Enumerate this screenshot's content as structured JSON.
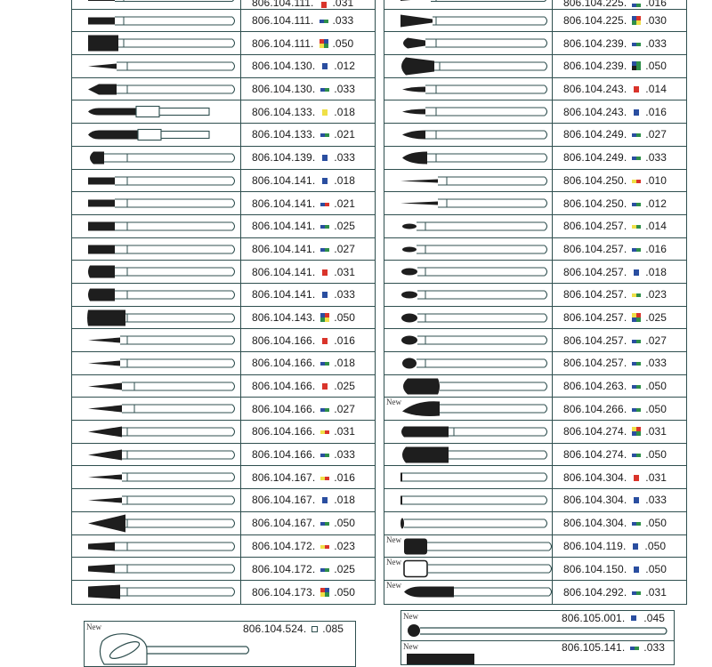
{
  "new_label": "New",
  "colors": {
    "red": "#d9342b",
    "blue": "#2a4ea0",
    "green": "#2f8f4a",
    "yellow": "#efe047",
    "black": "#1e1e1e",
    "outline": "#2f4f4f"
  },
  "left_column": [
    {
      "code": "806.104.111.",
      "swatch": [
        "red"
      ],
      "size": ".031",
      "shape": "bullet-l",
      "is_new": false
    },
    {
      "code": "806.104.111.",
      "swatch": [
        "blue",
        "green"
      ],
      "size": ".033",
      "shape": "bullet-l",
      "is_new": false
    },
    {
      "code": "806.104.111.",
      "swatch": [
        "quad"
      ],
      "size": ".050",
      "shape": "cyl-xl",
      "is_new": false
    },
    {
      "code": "806.104.130.",
      "swatch": [
        "blue"
      ],
      "size": ".012",
      "shape": "taper-thin",
      "is_new": false
    },
    {
      "code": "806.104.130.",
      "swatch": [
        "blue",
        "green"
      ],
      "size": ".033",
      "shape": "point-flame",
      "is_new": false
    },
    {
      "code": "806.104.133.",
      "swatch": [
        "yellow"
      ],
      "size": ".018",
      "shape": "long-short",
      "is_new": false
    },
    {
      "code": "806.104.133.",
      "swatch": [
        "blue",
        "green"
      ],
      "size": ".021",
      "shape": "long-short-b",
      "is_new": false
    },
    {
      "code": "806.104.139.",
      "swatch": [
        "blue"
      ],
      "size": ".033",
      "shape": "round-end",
      "is_new": false
    },
    {
      "code": "806.104.141.",
      "swatch": [
        "blue"
      ],
      "size": ".018",
      "shape": "cyl-s",
      "is_new": false
    },
    {
      "code": "806.104.141.",
      "swatch": [
        "blue",
        "red"
      ],
      "size": ".021",
      "shape": "cyl-s",
      "is_new": false
    },
    {
      "code": "806.104.141.",
      "swatch": [
        "blue",
        "green"
      ],
      "size": ".025",
      "shape": "cyl-m",
      "is_new": false
    },
    {
      "code": "806.104.141.",
      "swatch": [
        "blue",
        "green"
      ],
      "size": ".027",
      "shape": "cyl-m",
      "is_new": false
    },
    {
      "code": "806.104.141.",
      "swatch": [
        "red"
      ],
      "size": ".031",
      "shape": "cyl-l",
      "is_new": false
    },
    {
      "code": "806.104.141.",
      "swatch": [
        "blue"
      ],
      "size": ".033",
      "shape": "cyl-l",
      "is_new": false
    },
    {
      "code": "806.104.143.",
      "swatch": [
        "quad2"
      ],
      "size": ".050",
      "shape": "cyl-xl2",
      "is_new": false
    },
    {
      "code": "806.104.166.",
      "swatch": [
        "red"
      ],
      "size": ".016",
      "shape": "needle-s",
      "is_new": false
    },
    {
      "code": "806.104.166.",
      "swatch": [
        "blue",
        "green"
      ],
      "size": ".018",
      "shape": "needle-s",
      "is_new": false
    },
    {
      "code": "806.104.166.",
      "swatch": [
        "red"
      ],
      "size": ".025",
      "shape": "needle-m",
      "is_new": false
    },
    {
      "code": "806.104.166.",
      "swatch": [
        "blue",
        "green"
      ],
      "size": ".027",
      "shape": "needle-m",
      "is_new": false
    },
    {
      "code": "806.104.166.",
      "swatch": [
        "yellow",
        "red"
      ],
      "size": ".031",
      "shape": "needle-l",
      "is_new": false
    },
    {
      "code": "806.104.166.",
      "swatch": [
        "blue",
        "green"
      ],
      "size": ".033",
      "shape": "needle-l",
      "is_new": false
    },
    {
      "code": "806.104.167.",
      "swatch": [
        "yellow",
        "red"
      ],
      "size": ".016",
      "shape": "taper-s",
      "is_new": false
    },
    {
      "code": "806.104.167.",
      "swatch": [
        "blue"
      ],
      "size": ".018",
      "shape": "taper-s",
      "is_new": false
    },
    {
      "code": "806.104.167.",
      "swatch": [
        "blue",
        "green"
      ],
      "size": ".050",
      "shape": "cone-big",
      "is_new": false
    },
    {
      "code": "806.104.172.",
      "swatch": [
        "yellow",
        "red"
      ],
      "size": ".023",
      "shape": "cyl-taper",
      "is_new": false
    },
    {
      "code": "806.104.172.",
      "swatch": [
        "blue",
        "green"
      ],
      "size": ".025",
      "shape": "cyl-taper",
      "is_new": false
    },
    {
      "code": "806.104.173.",
      "swatch": [
        "quad"
      ],
      "size": ".050",
      "shape": "cyl-taper-l",
      "is_new": false
    }
  ],
  "right_column": [
    {
      "code": "806.104.225.",
      "swatch": [
        "blue",
        "green"
      ],
      "size": ".016",
      "shape": "fan-s",
      "is_new": false
    },
    {
      "code": "806.104.225.",
      "swatch": [
        "quad2"
      ],
      "size": ".030",
      "shape": "fan-l",
      "is_new": false
    },
    {
      "code": "806.104.239.",
      "swatch": [
        "blue",
        "green"
      ],
      "size": ".033",
      "shape": "bud-s",
      "is_new": false
    },
    {
      "code": "806.104.239.",
      "swatch": [
        "quad3"
      ],
      "size": ".050",
      "shape": "bud-l",
      "is_new": false
    },
    {
      "code": "806.104.243.",
      "swatch": [
        "red"
      ],
      "size": ".014",
      "shape": "leaf-s",
      "is_new": false
    },
    {
      "code": "806.104.243.",
      "swatch": [
        "blue"
      ],
      "size": ".016",
      "shape": "leaf-s",
      "is_new": false
    },
    {
      "code": "806.104.249.",
      "swatch": [
        "blue",
        "green"
      ],
      "size": ".027",
      "shape": "leaf-m",
      "is_new": false
    },
    {
      "code": "806.104.249.",
      "swatch": [
        "blue",
        "green"
      ],
      "size": ".033",
      "shape": "leaf-l",
      "is_new": false
    },
    {
      "code": "806.104.250.",
      "swatch": [
        "yellow",
        "red"
      ],
      "size": ".010",
      "shape": "hair",
      "is_new": false
    },
    {
      "code": "806.104.250.",
      "swatch": [
        "blue",
        "green"
      ],
      "size": ".012",
      "shape": "hair",
      "is_new": false
    },
    {
      "code": "806.104.257.",
      "swatch": [
        "yellow",
        "green"
      ],
      "size": ".014",
      "shape": "egg-s",
      "is_new": false
    },
    {
      "code": "806.104.257.",
      "swatch": [
        "blue",
        "green"
      ],
      "size": ".016",
      "shape": "egg-s",
      "is_new": false
    },
    {
      "code": "806.104.257.",
      "swatch": [
        "blue"
      ],
      "size": ".018",
      "shape": "egg-m",
      "is_new": false
    },
    {
      "code": "806.104.257.",
      "swatch": [
        "yellow",
        "green"
      ],
      "size": ".023",
      "shape": "egg-m",
      "is_new": false
    },
    {
      "code": "806.104.257.",
      "swatch": [
        "quad4"
      ],
      "size": ".025",
      "shape": "egg-l",
      "is_new": false
    },
    {
      "code": "806.104.257.",
      "swatch": [
        "blue",
        "green"
      ],
      "size": ".027",
      "shape": "egg-l",
      "is_new": false
    },
    {
      "code": "806.104.257.",
      "swatch": [
        "blue",
        "green"
      ],
      "size": ".033",
      "shape": "egg-xl",
      "is_new": false
    },
    {
      "code": "806.104.263.",
      "swatch": [
        "blue",
        "green"
      ],
      "size": ".050",
      "shape": "pear-l",
      "is_new": false
    },
    {
      "code": "806.104.266.",
      "swatch": [
        "blue",
        "green"
      ],
      "size": ".050",
      "shape": "flame-l",
      "is_new": true
    },
    {
      "code": "806.104.274.",
      "swatch": [
        "quad4"
      ],
      "size": ".031",
      "shape": "bar-long",
      "is_new": false
    },
    {
      "code": "806.104.274.",
      "swatch": [
        "blue",
        "green"
      ],
      "size": ".050",
      "shape": "bar-block",
      "is_new": false
    },
    {
      "code": "806.104.304.",
      "swatch": [
        "red"
      ],
      "size": ".031",
      "shape": "disc-s",
      "is_new": false
    },
    {
      "code": "806.104.304.",
      "swatch": [
        "blue"
      ],
      "size": ".033",
      "shape": "disc-s",
      "is_new": false
    },
    {
      "code": "806.104.304.",
      "swatch": [
        "blue",
        "green"
      ],
      "size": ".050",
      "shape": "disc-m",
      "is_new": false
    },
    {
      "code": "806.104.119.",
      "swatch": [
        "blue"
      ],
      "size": ".050",
      "shape": "square-dark",
      "is_new": true
    },
    {
      "code": "806.104.150.",
      "swatch": [
        "blue"
      ],
      "size": ".050",
      "shape": "square-open",
      "is_new": true
    },
    {
      "code": "806.104.292.",
      "swatch": [
        "blue",
        "green"
      ],
      "size": ".031",
      "shape": "long-dark",
      "is_new": true
    }
  ],
  "bottom_left": {
    "code": "806.104.524.",
    "swatch": [
      "outline"
    ],
    "size": ".085",
    "is_new": true
  },
  "bottom_right": [
    {
      "code": "806.105.001.",
      "swatch": [
        "blue"
      ],
      "size": ".045",
      "is_new": true
    },
    {
      "code": "806.105.141.",
      "swatch": [
        "blue",
        "green"
      ],
      "size": ".033",
      "is_new": true
    }
  ]
}
